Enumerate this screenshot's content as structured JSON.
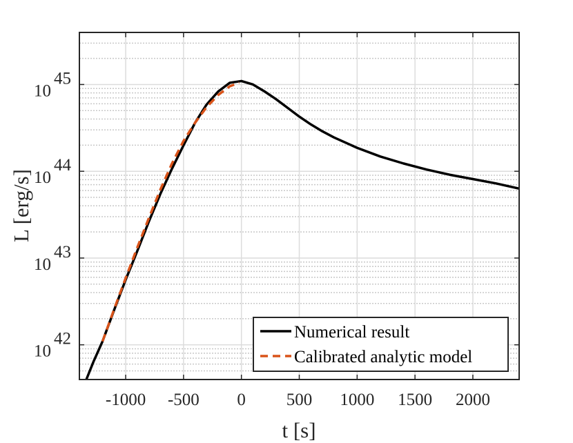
{
  "chart_data": {
    "type": "line",
    "title": "",
    "xlabel": "t [s]",
    "ylabel": "L [erg/s]",
    "xlim": [
      -1400,
      2400
    ],
    "ylim_log10": [
      41.6,
      45.6
    ],
    "yscale": "log",
    "grid": true,
    "minor_grid": true,
    "legend_position": "bottom-right",
    "xticks": [
      -1000,
      -500,
      0,
      500,
      1000,
      1500,
      2000
    ],
    "xtick_labels": [
      "-1000",
      "-500",
      "0",
      "500",
      "1000",
      "1500",
      "2000"
    ],
    "yticks_log10": [
      42,
      43,
      44,
      45
    ],
    "ytick_labels": [
      {
        "base": "10",
        "exp": "42"
      },
      {
        "base": "10",
        "exp": "43"
      },
      {
        "base": "10",
        "exp": "44"
      },
      {
        "base": "10",
        "exp": "45"
      }
    ],
    "series": [
      {
        "name": "Numerical result",
        "color": "#000000",
        "style": "solid",
        "x": [
          -1340,
          -1280,
          -1200,
          -1100,
          -1000,
          -900,
          -800,
          -700,
          -600,
          -500,
          -400,
          -300,
          -200,
          -100,
          0,
          100,
          200,
          300,
          400,
          500,
          600,
          700,
          800,
          900,
          1000,
          1200,
          1400,
          1600,
          1800,
          2000,
          2200,
          2400
        ],
        "log10_y": [
          41.6,
          41.8,
          42.04,
          42.4,
          42.75,
          43.08,
          43.42,
          43.74,
          44.03,
          44.3,
          44.56,
          44.77,
          44.92,
          45.02,
          45.04,
          45.0,
          44.92,
          44.83,
          44.73,
          44.63,
          44.54,
          44.46,
          44.39,
          44.33,
          44.27,
          44.17,
          44.09,
          44.02,
          43.96,
          43.91,
          43.86,
          43.8
        ]
      },
      {
        "name": "Calibrated analytic model",
        "color": "#D95319",
        "style": "dashed",
        "x": [
          -1200,
          -1100,
          -1000,
          -900,
          -800,
          -700,
          -600,
          -500,
          -400,
          -300,
          -200,
          -100,
          -20
        ],
        "log10_y": [
          42.04,
          42.41,
          42.77,
          43.12,
          43.46,
          43.79,
          44.09,
          44.35,
          44.56,
          44.74,
          44.88,
          44.98,
          45.02
        ]
      }
    ]
  }
}
